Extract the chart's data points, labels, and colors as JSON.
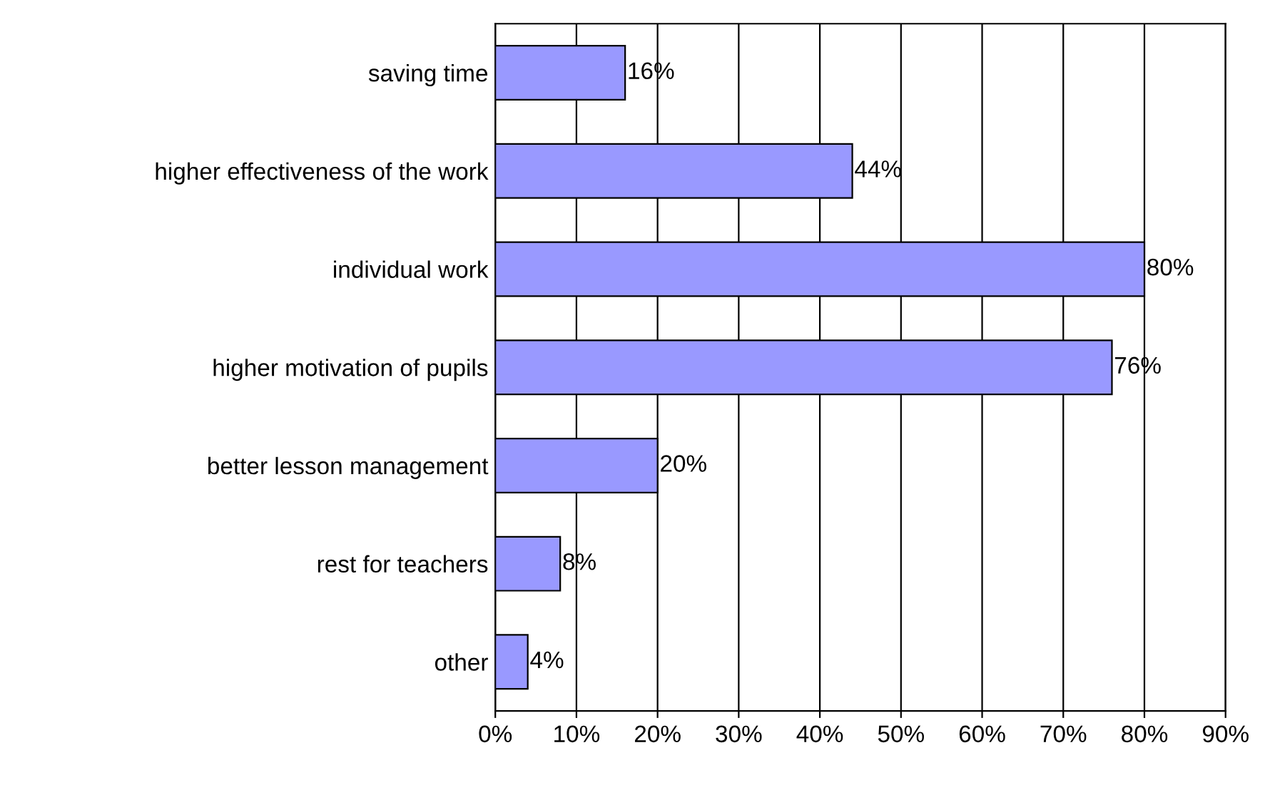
{
  "chart_data": {
    "type": "bar",
    "orientation": "horizontal",
    "categories": [
      "saving time",
      "higher effectiveness of the work",
      "individual work",
      "higher motivation of pupils",
      "better lesson management",
      "rest for teachers",
      "other"
    ],
    "values": [
      16,
      44,
      80,
      76,
      20,
      8,
      4
    ],
    "value_labels": [
      "16%",
      "44%",
      "80%",
      "76%",
      "20%",
      "8%",
      "4%"
    ],
    "color": "#9999ff",
    "xlim": [
      0,
      90
    ],
    "xticks": [
      {
        "value": 0,
        "label": "0%"
      },
      {
        "value": 10,
        "label": "10%"
      },
      {
        "value": 20,
        "label": "20%"
      },
      {
        "value": 30,
        "label": "30%"
      },
      {
        "value": 40,
        "label": "40%"
      },
      {
        "value": 50,
        "label": "50%"
      },
      {
        "value": 60,
        "label": "60%"
      },
      {
        "value": 70,
        "label": "70%"
      },
      {
        "value": 80,
        "label": "80%"
      },
      {
        "value": 90,
        "label": "90%"
      }
    ],
    "grid": "x"
  }
}
